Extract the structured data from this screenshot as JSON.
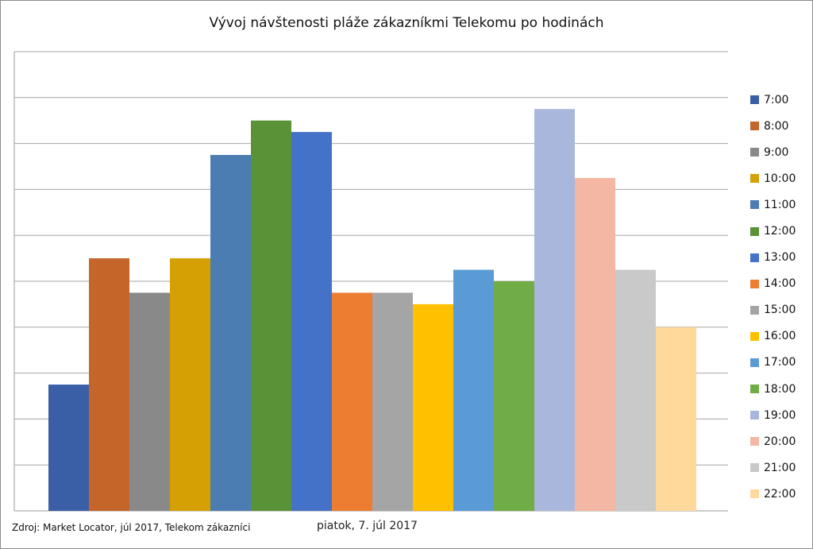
{
  "chart_data": {
    "type": "bar",
    "title": "Vývoj návštenosti pláže zákazníkmi Telekomu po hodinách",
    "categories": [
      "7:00",
      "8:00",
      "9:00",
      "10:00",
      "11:00",
      "12:00",
      "13:00",
      "14:00",
      "15:00",
      "16:00",
      "17:00",
      "18:00",
      "19:00",
      "20:00",
      "21:00",
      "22:00"
    ],
    "values": [
      5.5,
      11.0,
      9.5,
      11.0,
      15.5,
      17.0,
      16.5,
      9.5,
      9.5,
      9.0,
      10.5,
      10.0,
      17.5,
      14.5,
      10.5,
      8.0
    ],
    "colors": [
      "#3A5FA6",
      "#C5652A",
      "#898989",
      "#D4A003",
      "#4B7CB2",
      "#5A9238",
      "#4472C8",
      "#ED7D31",
      "#A5A5A5",
      "#FFC000",
      "#5B9BD5",
      "#70AD47",
      "#A9B7DC",
      "#F4B7A3",
      "#C9C9C9",
      "#FFD89B"
    ],
    "ylim": [
      0,
      20
    ],
    "grid": true,
    "gridline_count": 10,
    "legend_position": "right"
  },
  "footer": {
    "source": "Zdroj: Market Locator, júl 2017, Telekom zákazníci",
    "date": "piatok, 7. júl 2017"
  }
}
